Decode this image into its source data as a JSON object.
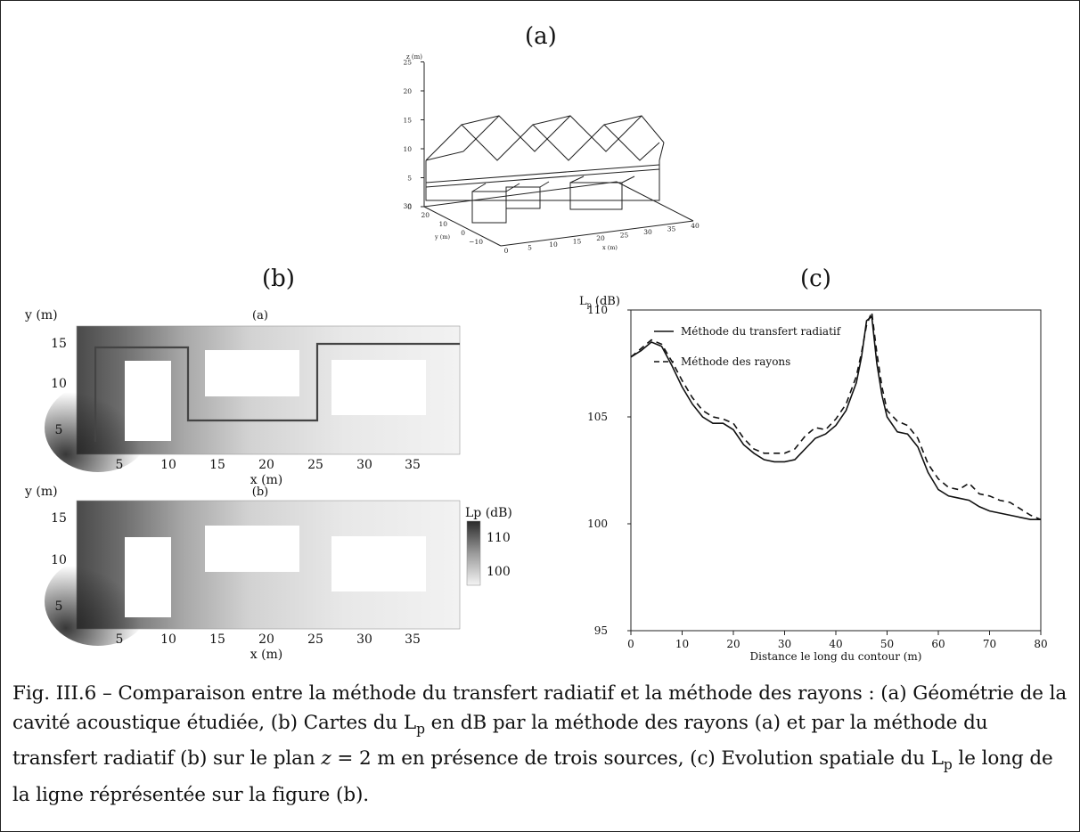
{
  "panels": {
    "a": {
      "label": "(a)",
      "axis_labels": {
        "z": "z (m)",
        "y": "y (m)",
        "x": "x (m)"
      },
      "z_ticks": [
        "0",
        "5",
        "10",
        "15",
        "20",
        "25"
      ],
      "y_ticks": [
        "30",
        "20",
        "10",
        "0",
        "−10"
      ],
      "x_ticks": [
        "0",
        "5",
        "10",
        "15",
        "20",
        "25",
        "30",
        "35",
        "40"
      ]
    },
    "b": {
      "label": "(b)",
      "map1_title": "(a)",
      "map2_title": "(b)",
      "ylabel": "y (m)",
      "xlabel": "x (m)",
      "y_ticks": [
        "15",
        "10",
        "5"
      ],
      "x_ticks": [
        "5",
        "10",
        "15",
        "20",
        "25",
        "30",
        "35"
      ],
      "colorbar": {
        "title": "Lp (dB)",
        "ticks": [
          "110",
          "100"
        ]
      }
    },
    "c": {
      "label": "(c)"
    }
  },
  "chart_data": {
    "type": "line",
    "ylabel_main": "L",
    "ylabel_sub": "p",
    "ylabel_unit": " (dB)",
    "xlabel": "Distance le long du contour (m)",
    "xlim": [
      0,
      80
    ],
    "ylim": [
      95,
      110
    ],
    "x_ticks": [
      0,
      10,
      20,
      30,
      40,
      50,
      60,
      70,
      80
    ],
    "y_ticks": [
      95,
      100,
      105,
      110
    ],
    "series": [
      {
        "name": "Méthode du transfert radiatif",
        "style": "solid",
        "x": [
          0,
          2,
          4,
          6,
          8,
          10,
          12,
          14,
          16,
          18,
          20,
          22,
          24,
          26,
          28,
          30,
          32,
          34,
          36,
          38,
          40,
          42,
          44,
          45,
          46,
          47,
          48,
          49,
          50,
          52,
          54,
          56,
          58,
          60,
          62,
          64,
          66,
          68,
          70,
          72,
          74,
          76,
          78,
          80
        ],
        "y": [
          107.8,
          108.1,
          108.5,
          108.3,
          107.4,
          106.4,
          105.6,
          105.0,
          104.7,
          104.7,
          104.4,
          103.7,
          103.3,
          103.0,
          102.9,
          102.9,
          103.0,
          103.5,
          104.0,
          104.2,
          104.6,
          105.3,
          106.6,
          107.8,
          109.5,
          109.7,
          107.5,
          106.0,
          105.0,
          104.3,
          104.2,
          103.6,
          102.4,
          101.6,
          101.3,
          101.2,
          101.1,
          100.8,
          100.6,
          100.5,
          100.4,
          100.3,
          100.2,
          100.2
        ]
      },
      {
        "name": "Méthode des rayons",
        "style": "dashed",
        "x": [
          0,
          2,
          4,
          6,
          8,
          10,
          12,
          14,
          16,
          18,
          20,
          22,
          24,
          26,
          28,
          30,
          32,
          34,
          36,
          38,
          40,
          42,
          44,
          45,
          46,
          47,
          48,
          49,
          50,
          52,
          54,
          56,
          58,
          60,
          62,
          64,
          66,
          68,
          70,
          72,
          74,
          76,
          78,
          80
        ],
        "y": [
          107.8,
          108.2,
          108.6,
          108.4,
          107.6,
          106.7,
          105.9,
          105.3,
          105.0,
          104.9,
          104.7,
          104.0,
          103.5,
          103.3,
          103.3,
          103.3,
          103.5,
          104.1,
          104.5,
          104.4,
          104.9,
          105.6,
          106.9,
          108.0,
          109.3,
          109.9,
          108.0,
          106.4,
          105.3,
          104.8,
          104.6,
          104.0,
          102.8,
          102.1,
          101.7,
          101.6,
          101.9,
          101.4,
          101.3,
          101.1,
          101.0,
          100.7,
          100.4,
          100.2
        ]
      }
    ],
    "legend": [
      "Méthode du transfert radiatif",
      "Méthode des rayons"
    ],
    "legend_position": "top-left"
  },
  "caption": {
    "part1": "Fig. III.6 – Comparaison entre la méthode du transfert radiatif et la méthode des rayons : (a) Géométrie de la cavité acoustique étudiée, (b) Cartes du L",
    "sub1": "p",
    "part2": " en dB par la méthode des rayons (a) et par la méthode du transfert radiatif (b) sur le plan ",
    "math_z": "z",
    "part3": " = 2 m en présence de trois sources, (c) Evolution spatiale du L",
    "sub2": "p",
    "part4": " le long de la ligne réprésentée sur la figure (b)."
  }
}
